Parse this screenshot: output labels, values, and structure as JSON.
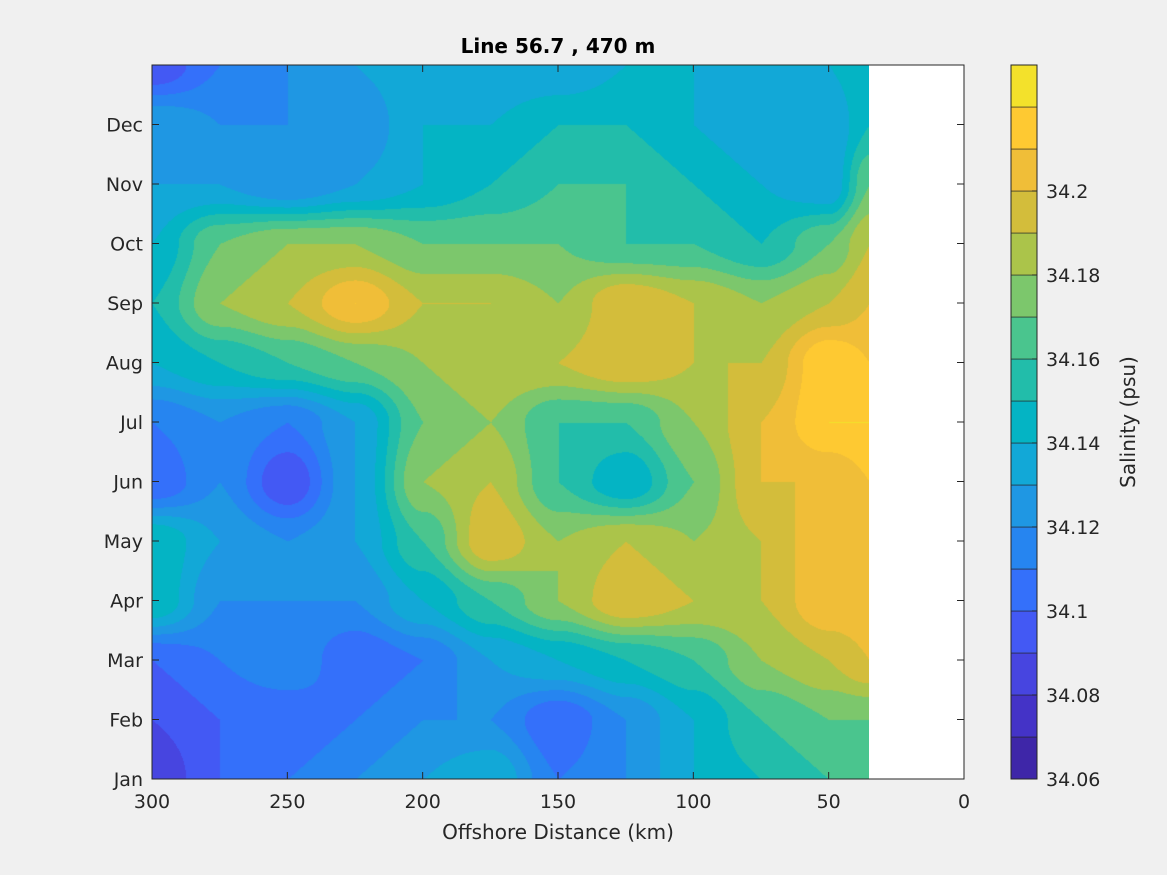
{
  "chart_data": {
    "type": "contourf",
    "title": "Line 56.7 , 470 m",
    "xlabel": "Offshore Distance (km)",
    "ylabel": "",
    "colorbar_label": "Salinity (psu)",
    "x_direction": "reversed",
    "xlim": [
      0,
      300
    ],
    "xticks": [
      300,
      250,
      200,
      150,
      100,
      50,
      0
    ],
    "xticklabels": [
      "300",
      "250",
      "200",
      "150",
      "100",
      "50",
      "0"
    ],
    "ylim": [
      0,
      12
    ],
    "yticks": [
      0,
      1,
      2,
      3,
      4,
      5,
      6,
      7,
      8,
      9,
      10,
      11
    ],
    "yticklabels": [
      "Jan",
      "Feb",
      "Mar",
      "Apr",
      "May",
      "Jun",
      "Jul",
      "Aug",
      "Sep",
      "Oct",
      "Nov",
      "Dec"
    ],
    "data_x_extent": [
      35,
      300
    ],
    "clim": [
      34.06,
      34.23
    ],
    "colorbar_ticks": [
      34.06,
      34.08,
      34.1,
      34.12,
      34.14,
      34.16,
      34.18,
      34.2
    ],
    "colorbar_ticklabels": [
      "34.06",
      "34.08",
      "34.1",
      "34.12",
      "34.14",
      "34.16",
      "34.18",
      "34.2"
    ],
    "levels": [
      34.06,
      34.07,
      34.08,
      34.09,
      34.1,
      34.11,
      34.12,
      34.13,
      34.14,
      34.15,
      34.16,
      34.17,
      34.18,
      34.19,
      34.2,
      34.21,
      34.22,
      34.23
    ],
    "level_colors": [
      "#3e26a8",
      "#4433c7",
      "#4745e0",
      "#4359f4",
      "#3470fa",
      "#2685f0",
      "#1f97e3",
      "#12a8d7",
      "#04b4c4",
      "#22bdaa",
      "#4ac58e",
      "#7cc76c",
      "#abc44a",
      "#d3bd3b",
      "#f0be38",
      "#fec932",
      "#f3e12b",
      "#f5f518"
    ],
    "grid_x": [
      300,
      275,
      250,
      225,
      200,
      175,
      150,
      125,
      100,
      75,
      50,
      35
    ],
    "grid_y": [
      0,
      1,
      2,
      3,
      4,
      5,
      6,
      7,
      8,
      9,
      10,
      11,
      12
    ],
    "salinity": [
      [
        34.08,
        34.1,
        34.11,
        34.12,
        34.13,
        34.14,
        34.11,
        34.12,
        34.14,
        34.15,
        34.16,
        34.16
      ],
      [
        34.09,
        34.1,
        34.1,
        34.11,
        34.12,
        34.12,
        34.1,
        34.12,
        34.14,
        34.16,
        34.17,
        34.17
      ],
      [
        34.1,
        34.11,
        34.12,
        34.1,
        34.11,
        34.13,
        34.14,
        34.15,
        34.16,
        34.18,
        34.19,
        34.2
      ],
      [
        34.15,
        34.12,
        34.12,
        34.12,
        34.14,
        34.16,
        34.18,
        34.2,
        34.19,
        34.19,
        34.21,
        34.21
      ],
      [
        34.15,
        34.13,
        34.12,
        34.13,
        34.16,
        34.2,
        34.18,
        34.19,
        34.18,
        34.19,
        34.21,
        34.2
      ],
      [
        34.1,
        34.12,
        34.09,
        34.13,
        34.18,
        34.19,
        34.16,
        34.14,
        34.17,
        34.2,
        34.2,
        34.21
      ],
      [
        34.11,
        34.12,
        34.11,
        34.13,
        34.17,
        34.18,
        34.16,
        34.16,
        34.18,
        34.2,
        34.22,
        34.22
      ],
      [
        34.14,
        34.15,
        34.16,
        34.17,
        34.18,
        34.19,
        34.19,
        34.2,
        34.19,
        34.19,
        34.22,
        34.21
      ],
      [
        34.15,
        34.18,
        34.19,
        34.21,
        34.19,
        34.19,
        34.18,
        34.2,
        34.19,
        34.18,
        34.19,
        34.2
      ],
      [
        34.14,
        34.17,
        34.18,
        34.18,
        34.17,
        34.17,
        34.17,
        34.16,
        34.16,
        34.15,
        34.17,
        34.19
      ],
      [
        34.13,
        34.13,
        34.12,
        34.13,
        34.14,
        34.15,
        34.16,
        34.16,
        34.15,
        34.14,
        34.13,
        34.17
      ],
      [
        34.13,
        34.12,
        34.12,
        34.12,
        34.14,
        34.14,
        34.15,
        34.15,
        34.14,
        34.13,
        34.13,
        34.15
      ],
      [
        34.09,
        34.11,
        34.12,
        34.13,
        34.14,
        34.13,
        34.13,
        34.14,
        34.14,
        34.14,
        34.14,
        34.15
      ]
    ]
  }
}
